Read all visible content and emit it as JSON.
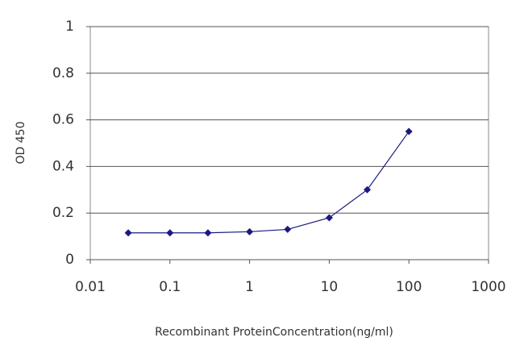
{
  "chart_data": {
    "type": "line",
    "xlabel": "Recombinant ProteinConcentration(ng/ml)",
    "ylabel": "OD 450",
    "x": [
      0.03,
      0.1,
      0.3,
      1,
      3,
      10,
      30,
      100
    ],
    "series": [
      {
        "name": "OD",
        "color": "#1a1a80",
        "values": [
          0.115,
          0.115,
          0.115,
          0.12,
          0.13,
          0.18,
          0.3,
          0.55
        ]
      }
    ],
    "xlim": [
      0.01,
      1000
    ],
    "xticks": [
      0.01,
      0.1,
      1,
      10,
      100,
      1000
    ],
    "xscale": "log",
    "ylim": [
      0,
      1
    ],
    "yticks": [
      0,
      0.2,
      0.4,
      0.6,
      0.8,
      1
    ],
    "grid": true
  }
}
